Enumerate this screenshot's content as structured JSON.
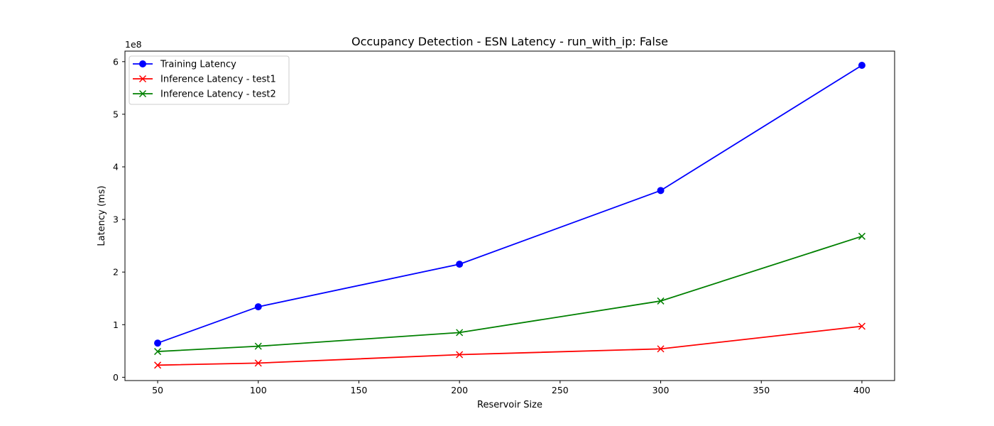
{
  "chart_data": {
    "type": "line",
    "title": "Occupancy Detection - ESN Latency - run_with_ip: False",
    "xlabel": "Reservoir Size",
    "ylabel": "Latency (ms)",
    "y_multiplier_label": "1e8",
    "x": [
      50,
      100,
      200,
      300,
      400
    ],
    "xlim": [
      33.75,
      416.25
    ],
    "ylim": [
      -0.0625,
      6.2
    ],
    "x_ticks": [
      50,
      100,
      150,
      200,
      250,
      300,
      350,
      400
    ],
    "y_ticks": [
      0,
      1,
      2,
      3,
      4,
      5,
      6
    ],
    "y_scale_factor": 100000000,
    "grid": false,
    "legend_position": "top-left",
    "series": [
      {
        "name": "Training Latency",
        "color": "#0000ff",
        "marker": "circle",
        "values": [
          0.65,
          1.34,
          2.15,
          3.55,
          5.93
        ]
      },
      {
        "name": "Inference Latency - test1",
        "color": "#ff0000",
        "marker": "x",
        "values": [
          0.23,
          0.27,
          0.43,
          0.54,
          0.97
        ]
      },
      {
        "name": "Inference Latency - test2",
        "color": "#008000",
        "marker": "x",
        "values": [
          0.49,
          0.59,
          0.85,
          1.45,
          2.68
        ]
      }
    ]
  }
}
